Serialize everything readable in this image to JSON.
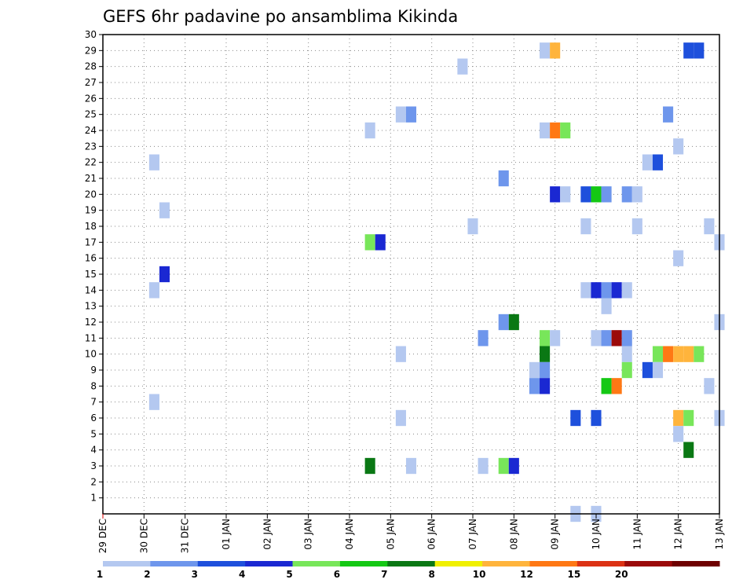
{
  "chart_data": {
    "type": "heatmap",
    "title": "GEFS 6hr padavine po ansamblima Kikinda",
    "x_tick_labels": [
      "29 DEC",
      "30 DEC",
      "31 DEC",
      "01 JAN",
      "02 JAN",
      "03 JAN",
      "04 JAN",
      "05 JAN",
      "06 JAN",
      "07 JAN",
      "08 JAN",
      "09 JAN",
      "10 JAN",
      "11 JAN",
      "12 JAN",
      "13 JAN"
    ],
    "x_range_days": [
      0,
      15
    ],
    "y_ticks": [
      1,
      2,
      3,
      4,
      5,
      6,
      7,
      8,
      9,
      10,
      11,
      12,
      13,
      14,
      15,
      16,
      17,
      18,
      19,
      20,
      21,
      22,
      23,
      24,
      25,
      26,
      27,
      28,
      29,
      30
    ],
    "y_range": [
      0,
      30
    ],
    "grid": true,
    "legend": {
      "position": "bottom",
      "levels": [
        "1",
        "2",
        "3",
        "4",
        "5",
        "6",
        "7",
        "8",
        "10",
        "12",
        "15",
        "20"
      ],
      "colors": [
        "#b4c8f0",
        "#6e96ec",
        "#1e50dc",
        "#1a28d2",
        "#78e65a",
        "#14c814",
        "#0a7814",
        "#f0f000",
        "#ffb43c",
        "#ff7814",
        "#dc3214",
        "#9b0a0a",
        "#6e0000"
      ]
    },
    "cells": [
      {
        "day": 10.75,
        "member": 29,
        "bin": 0
      },
      {
        "day": 11.0,
        "member": 29,
        "bin": 8
      },
      {
        "day": 14.25,
        "member": 29,
        "bin": 2
      },
      {
        "day": 14.5,
        "member": 29,
        "bin": 2
      },
      {
        "day": 8.75,
        "member": 28,
        "bin": 0
      },
      {
        "day": 7.25,
        "member": 25,
        "bin": 0
      },
      {
        "day": 7.5,
        "member": 25,
        "bin": 1
      },
      {
        "day": 13.75,
        "member": 25,
        "bin": 1
      },
      {
        "day": 6.5,
        "member": 24,
        "bin": 0
      },
      {
        "day": 10.75,
        "member": 24,
        "bin": 0
      },
      {
        "day": 11.0,
        "member": 24,
        "bin": 9
      },
      {
        "day": 11.25,
        "member": 24,
        "bin": 4
      },
      {
        "day": 14.0,
        "member": 23,
        "bin": 0
      },
      {
        "day": 1.25,
        "member": 22,
        "bin": 0
      },
      {
        "day": 13.25,
        "member": 22,
        "bin": 0
      },
      {
        "day": 13.5,
        "member": 22,
        "bin": 2
      },
      {
        "day": 9.75,
        "member": 21,
        "bin": 1
      },
      {
        "day": 11.0,
        "member": 20,
        "bin": 3
      },
      {
        "day": 11.25,
        "member": 20,
        "bin": 0
      },
      {
        "day": 11.75,
        "member": 20,
        "bin": 2
      },
      {
        "day": 12.0,
        "member": 20,
        "bin": 5
      },
      {
        "day": 12.25,
        "member": 20,
        "bin": 1
      },
      {
        "day": 12.75,
        "member": 20,
        "bin": 1
      },
      {
        "day": 13.0,
        "member": 20,
        "bin": 0
      },
      {
        "day": 1.5,
        "member": 19,
        "bin": 0
      },
      {
        "day": 9.0,
        "member": 18,
        "bin": 0
      },
      {
        "day": 11.75,
        "member": 18,
        "bin": 0
      },
      {
        "day": 13.0,
        "member": 18,
        "bin": 0
      },
      {
        "day": 14.75,
        "member": 18,
        "bin": 0
      },
      {
        "day": 6.5,
        "member": 17,
        "bin": 4
      },
      {
        "day": 6.75,
        "member": 17,
        "bin": 3
      },
      {
        "day": 15.0,
        "member": 17,
        "bin": 0
      },
      {
        "day": 14.0,
        "member": 16,
        "bin": 0
      },
      {
        "day": 1.5,
        "member": 15,
        "bin": 3
      },
      {
        "day": 1.25,
        "member": 14,
        "bin": 0
      },
      {
        "day": 11.75,
        "member": 14,
        "bin": 0
      },
      {
        "day": 12.0,
        "member": 14,
        "bin": 3
      },
      {
        "day": 12.25,
        "member": 14,
        "bin": 1
      },
      {
        "day": 12.5,
        "member": 14,
        "bin": 3
      },
      {
        "day": 12.75,
        "member": 14,
        "bin": 0
      },
      {
        "day": 12.25,
        "member": 13,
        "bin": 0
      },
      {
        "day": 9.75,
        "member": 12,
        "bin": 1
      },
      {
        "day": 10.0,
        "member": 12,
        "bin": 6
      },
      {
        "day": 15.0,
        "member": 12,
        "bin": 0
      },
      {
        "day": 9.25,
        "member": 11,
        "bin": 1
      },
      {
        "day": 10.75,
        "member": 11,
        "bin": 4
      },
      {
        "day": 11.0,
        "member": 11,
        "bin": 0
      },
      {
        "day": 12.0,
        "member": 11,
        "bin": 0
      },
      {
        "day": 12.25,
        "member": 11,
        "bin": 1
      },
      {
        "day": 12.5,
        "member": 11,
        "bin": 11
      },
      {
        "day": 12.75,
        "member": 11,
        "bin": 1
      },
      {
        "day": 7.25,
        "member": 10,
        "bin": 0
      },
      {
        "day": 10.75,
        "member": 10,
        "bin": 6
      },
      {
        "day": 12.75,
        "member": 10,
        "bin": 0
      },
      {
        "day": 13.5,
        "member": 10,
        "bin": 4
      },
      {
        "day": 13.75,
        "member": 10,
        "bin": 9
      },
      {
        "day": 14.0,
        "member": 10,
        "bin": 8
      },
      {
        "day": 14.25,
        "member": 10,
        "bin": 8
      },
      {
        "day": 14.5,
        "member": 10,
        "bin": 4
      },
      {
        "day": 10.5,
        "member": 9,
        "bin": 0
      },
      {
        "day": 10.75,
        "member": 9,
        "bin": 1
      },
      {
        "day": 12.75,
        "member": 9,
        "bin": 4
      },
      {
        "day": 13.25,
        "member": 9,
        "bin": 2
      },
      {
        "day": 13.5,
        "member": 9,
        "bin": 0
      },
      {
        "day": 10.5,
        "member": 8,
        "bin": 1
      },
      {
        "day": 10.75,
        "member": 8,
        "bin": 3
      },
      {
        "day": 12.25,
        "member": 8,
        "bin": 5
      },
      {
        "day": 12.5,
        "member": 8,
        "bin": 9
      },
      {
        "day": 14.75,
        "member": 8,
        "bin": 0
      },
      {
        "day": 1.25,
        "member": 7,
        "bin": 0
      },
      {
        "day": 7.25,
        "member": 6,
        "bin": 0
      },
      {
        "day": 11.5,
        "member": 6,
        "bin": 2
      },
      {
        "day": 12.0,
        "member": 6,
        "bin": 2
      },
      {
        "day": 14.0,
        "member": 6,
        "bin": 8
      },
      {
        "day": 14.25,
        "member": 6,
        "bin": 4
      },
      {
        "day": 15.0,
        "member": 6,
        "bin": 0
      },
      {
        "day": 14.0,
        "member": 5,
        "bin": 0
      },
      {
        "day": 14.25,
        "member": 4,
        "bin": 6
      },
      {
        "day": 6.5,
        "member": 3,
        "bin": 6
      },
      {
        "day": 7.5,
        "member": 3,
        "bin": 0
      },
      {
        "day": 9.25,
        "member": 3,
        "bin": 0
      },
      {
        "day": 9.75,
        "member": 3,
        "bin": 4
      },
      {
        "day": 10.0,
        "member": 3,
        "bin": 3
      },
      {
        "day": 11.5,
        "member": 0,
        "bin": 0
      },
      {
        "day": 12.0,
        "member": 0,
        "bin": 0
      }
    ]
  }
}
